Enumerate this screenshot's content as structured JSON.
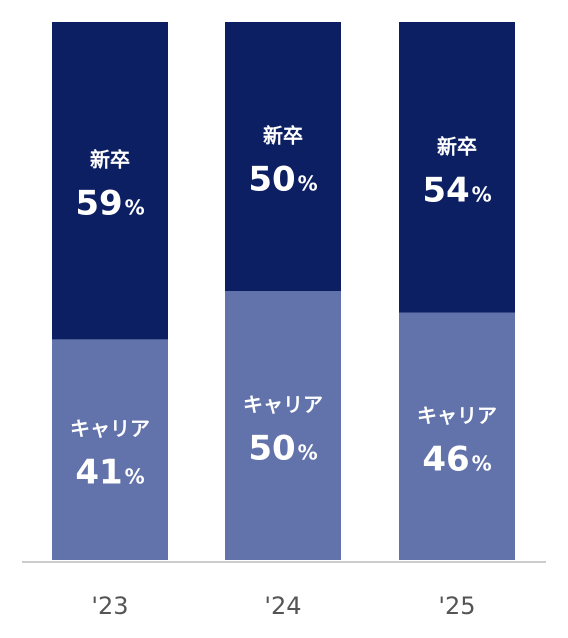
{
  "chart_data": {
    "type": "bar",
    "stacked": true,
    "normalized": true,
    "categories": [
      "'23",
      "'24",
      "'25"
    ],
    "series": [
      {
        "name": "キャリア",
        "values": [
          41,
          50,
          46
        ],
        "color": "#6272aa"
      },
      {
        "name": "新卒",
        "values": [
          59,
          50,
          54
        ],
        "color": "#0c1f62"
      }
    ],
    "unit": "%",
    "ylim": [
      0,
      100
    ],
    "title": "",
    "xlabel": "",
    "ylabel": "",
    "grid": false,
    "legend": "none"
  },
  "colors": {
    "baseline": "#cccccc",
    "label_text": "#ffffff",
    "tick_text": "#555555"
  }
}
